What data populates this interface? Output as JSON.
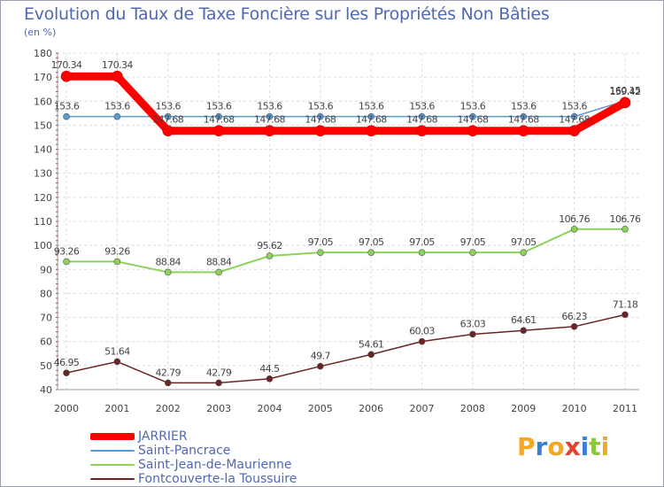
{
  "chart_data": {
    "type": "line",
    "title": "Evolution du Taux de Taxe Foncière sur les Propriétés Non Bâties",
    "unit_label": "(en %)",
    "x": [
      "2000",
      "2001",
      "2002",
      "2003",
      "2004",
      "2005",
      "2006",
      "2007",
      "2008",
      "2009",
      "2010",
      "2011"
    ],
    "ylim": [
      40,
      180
    ],
    "yticks": [
      "40",
      "50",
      "60",
      "70",
      "80",
      "90",
      "100",
      "110",
      "120",
      "130",
      "140",
      "150",
      "160",
      "170",
      "180"
    ],
    "grid": true,
    "legend_position": "bottom-left",
    "series": [
      {
        "name": "JARRIER",
        "color": "#ff0000",
        "values": [
          170.34,
          170.34,
          147.68,
          147.68,
          147.68,
          147.68,
          147.68,
          147.68,
          147.68,
          147.68,
          147.68,
          159.42
        ],
        "labels": [
          "170.34",
          "170.34",
          "147.68",
          "147.68",
          "147.68",
          "147.68",
          "147.68",
          "147.68",
          "147.68",
          "147.68",
          "147.68",
          "159.42"
        ]
      },
      {
        "name": "Saint-Pancrace",
        "color": "#5b9bd5",
        "values": [
          153.6,
          153.6,
          153.6,
          153.6,
          153.6,
          153.6,
          153.6,
          153.6,
          153.6,
          153.6,
          153.6,
          160.15
        ],
        "labels": [
          "153.6",
          "153.6",
          "153.6",
          "153.6",
          "153.6",
          "153.6",
          "153.6",
          "153.6",
          "153.6",
          "153.6",
          "153.6",
          "160.15"
        ]
      },
      {
        "name": "Saint-Jean-de-Maurienne",
        "color": "#8cd35a",
        "values": [
          93.26,
          93.26,
          88.84,
          88.84,
          95.62,
          97.05,
          97.05,
          97.05,
          97.05,
          97.05,
          106.76,
          106.76
        ],
        "labels": [
          "93.26",
          "93.26",
          "88.84",
          "88.84",
          "95.62",
          "97.05",
          "97.05",
          "97.05",
          "97.05",
          "97.05",
          "106.76",
          "106.76"
        ]
      },
      {
        "name": "Fontcouverte-la Toussuire",
        "color": "#6b2424",
        "values": [
          46.95,
          51.64,
          42.79,
          42.79,
          44.5,
          49.7,
          54.61,
          60.03,
          63.03,
          64.61,
          66.23,
          71.18
        ],
        "labels": [
          "46.95",
          "51.64",
          "42.79",
          "42.79",
          "44.5",
          "49.7",
          "54.61",
          "60.03",
          "63.03",
          "64.61",
          "66.23",
          "71.18"
        ]
      }
    ]
  },
  "logo": {
    "text": "Proxiti",
    "letter_colors": [
      "#f5a623",
      "#3b7fd4",
      "#f5a623",
      "#e8402a",
      "#3b7fd4",
      "#8cc63f",
      "#f5a623"
    ]
  }
}
